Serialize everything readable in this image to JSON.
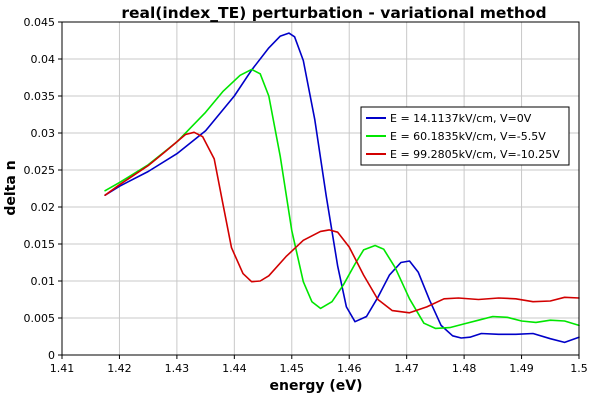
{
  "chart_data": {
    "type": "line",
    "title": "real(index_TE) perturbation - variational method",
    "xlabel": "energy (eV)",
    "ylabel": "delta n",
    "xlim": [
      1.41,
      1.5
    ],
    "ylim": [
      0,
      0.045
    ],
    "grid": true,
    "legend_position": "right",
    "x_ticks": [
      1.41,
      1.42,
      1.43,
      1.44,
      1.45,
      1.46,
      1.47,
      1.48,
      1.49,
      1.5
    ],
    "x_tick_labels": [
      "1.41",
      "1.42",
      "1.43",
      "1.44",
      "1.45",
      "1.46",
      "1.47",
      "1.48",
      "1.49",
      "1.5"
    ],
    "y_ticks": [
      0,
      0.005,
      0.01,
      0.015,
      0.02,
      0.025,
      0.03,
      0.035,
      0.04,
      0.045
    ],
    "y_tick_labels": [
      "0",
      "0.005",
      "0.01",
      "0.015",
      "0.02",
      "0.025",
      "0.03",
      "0.035",
      "0.04",
      "0.045"
    ],
    "series": [
      {
        "name": "E = 14.1137kV/cm, V=0V",
        "color": "#0000c8",
        "x": [
          1.4175,
          1.42,
          1.425,
          1.43,
          1.435,
          1.44,
          1.443,
          1.446,
          1.448,
          1.4495,
          1.4505,
          1.452,
          1.454,
          1.456,
          1.458,
          1.4595,
          1.461,
          1.463,
          1.465,
          1.467,
          1.469,
          1.4705,
          1.472,
          1.474,
          1.476,
          1.478,
          1.4795,
          1.481,
          1.483,
          1.486,
          1.489,
          1.492,
          1.495,
          1.4975,
          1.5
        ],
        "y": [
          0.0216,
          0.0228,
          0.0248,
          0.0272,
          0.0303,
          0.035,
          0.0385,
          0.0415,
          0.0431,
          0.0435,
          0.043,
          0.0398,
          0.0318,
          0.0215,
          0.012,
          0.0065,
          0.0045,
          0.0052,
          0.0078,
          0.0108,
          0.0125,
          0.0127,
          0.0112,
          0.0074,
          0.004,
          0.0026,
          0.0023,
          0.0024,
          0.0029,
          0.0028,
          0.0028,
          0.0029,
          0.0022,
          0.0017,
          0.0024
        ]
      },
      {
        "name": "E = 60.1835kV/cm, V=-5.5V",
        "color": "#00e600",
        "x": [
          1.4175,
          1.42,
          1.425,
          1.43,
          1.435,
          1.438,
          1.441,
          1.443,
          1.4445,
          1.446,
          1.448,
          1.45,
          1.452,
          1.4535,
          1.455,
          1.457,
          1.459,
          1.461,
          1.4625,
          1.4645,
          1.466,
          1.468,
          1.4705,
          1.473,
          1.475,
          1.4775,
          1.48,
          1.4825,
          1.485,
          1.4875,
          1.49,
          1.4925,
          1.495,
          1.4975,
          1.5
        ],
        "y": [
          0.0222,
          0.0233,
          0.0257,
          0.0288,
          0.0328,
          0.0356,
          0.0378,
          0.0386,
          0.038,
          0.035,
          0.0268,
          0.0168,
          0.0099,
          0.0072,
          0.0063,
          0.0072,
          0.0095,
          0.0123,
          0.0142,
          0.0148,
          0.0143,
          0.0118,
          0.0076,
          0.0043,
          0.0036,
          0.0037,
          0.0042,
          0.0047,
          0.0052,
          0.0051,
          0.0046,
          0.0044,
          0.0047,
          0.0046,
          0.004
        ]
      },
      {
        "name": "E = 99.2805kV/cm, V=-10.25V",
        "color": "#d20000",
        "x": [
          1.4175,
          1.42,
          1.425,
          1.428,
          1.4315,
          1.433,
          1.4345,
          1.4365,
          1.438,
          1.4395,
          1.4415,
          1.443,
          1.4445,
          1.446,
          1.449,
          1.452,
          1.455,
          1.4565,
          1.458,
          1.46,
          1.4625,
          1.465,
          1.4675,
          1.4705,
          1.4735,
          1.4765,
          1.479,
          1.4825,
          1.486,
          1.489,
          1.492,
          1.495,
          1.4975,
          1.5
        ],
        "y": [
          0.0216,
          0.023,
          0.0256,
          0.0275,
          0.0298,
          0.0301,
          0.0295,
          0.0265,
          0.0205,
          0.0145,
          0.011,
          0.0099,
          0.01,
          0.0107,
          0.0133,
          0.0155,
          0.0167,
          0.0169,
          0.0166,
          0.0146,
          0.0108,
          0.0075,
          0.006,
          0.0057,
          0.0065,
          0.0076,
          0.0077,
          0.0075,
          0.0077,
          0.0076,
          0.0072,
          0.0073,
          0.0078,
          0.0077
        ]
      }
    ]
  }
}
